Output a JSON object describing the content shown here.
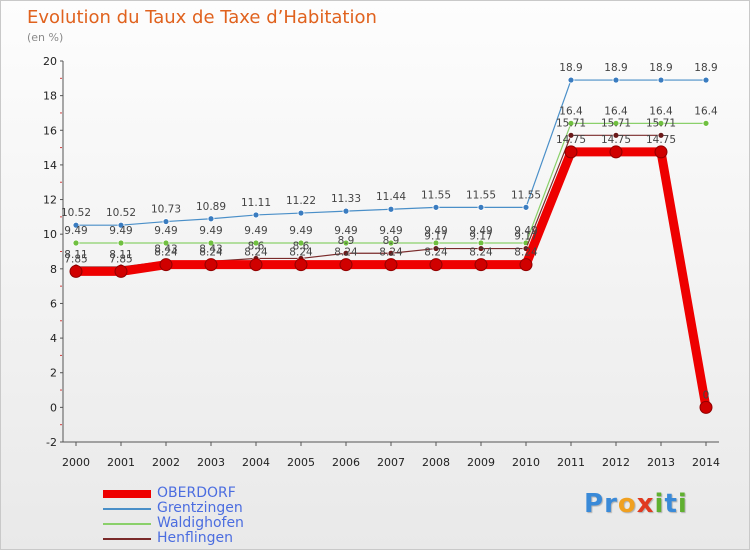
{
  "chart_data": {
    "type": "line",
    "title": "Evolution du Taux de Taxe d’Habitation",
    "unit": "(en %)",
    "xlabel": "",
    "ylabel": "",
    "ylim": [
      -2,
      20
    ],
    "yticks": [
      -2,
      0,
      2,
      4,
      6,
      8,
      10,
      12,
      14,
      16,
      18,
      20
    ],
    "categories": [
      "2000",
      "2001",
      "2002",
      "2003",
      "2004",
      "2005",
      "2006",
      "2007",
      "2008",
      "2009",
      "2010",
      "2011",
      "2012",
      "2013",
      "2014"
    ],
    "series": [
      {
        "name": "Grentzingen",
        "color": "#4a8fc8",
        "marker": "#3a7cc0",
        "values": [
          10.52,
          10.52,
          10.73,
          10.89,
          11.11,
          11.22,
          11.33,
          11.44,
          11.55,
          11.55,
          11.55,
          18.9,
          18.9,
          18.9,
          18.9
        ],
        "labels": [
          "10.52",
          "10.52",
          "10.73",
          "10.89",
          "11.11",
          "11.22",
          "11.33",
          "11.44",
          "11.55",
          "11.55",
          "11.55",
          "18.9",
          "18.9",
          "18.9",
          "18.9"
        ]
      },
      {
        "name": "Waldighofen",
        "color": "#8ad06a",
        "marker": "#70c040",
        "values": [
          9.49,
          9.49,
          9.49,
          9.49,
          9.49,
          9.49,
          9.49,
          9.49,
          9.49,
          9.49,
          9.49,
          16.4,
          16.4,
          16.4,
          16.4
        ],
        "labels": [
          "9.49",
          "9.49",
          "9.49",
          "9.49",
          "9.49",
          "9.49",
          "9.49",
          "9.49",
          "9.49",
          "9.49",
          "9.49",
          "16.4",
          "16.4",
          "16.4",
          "16.4"
        ]
      },
      {
        "name": "Henflingen",
        "color": "#7a2a2a",
        "marker": "#6a1a1a",
        "values": [
          8.11,
          8.11,
          8.43,
          8.43,
          8.6,
          8.6,
          8.9,
          8.9,
          9.17,
          9.17,
          9.17,
          15.71,
          15.71,
          15.71,
          null
        ],
        "labels": [
          "8.11",
          "8.11",
          "8.43",
          "8.43",
          "8.6",
          "8.6",
          "8.9",
          "8.9",
          "9.17",
          "9.17",
          "9.17",
          "15.71",
          "15.71",
          "15.71",
          ""
        ]
      },
      {
        "name": "OBERDORF",
        "color": "#ee0000",
        "marker": "#d00000",
        "values": [
          7.85,
          7.85,
          8.24,
          8.24,
          8.24,
          8.24,
          8.24,
          8.24,
          8.24,
          8.24,
          8.24,
          14.75,
          14.75,
          14.75,
          0
        ],
        "labels": [
          "7.85",
          "7.85",
          "8.24",
          "8.24",
          "8.24",
          "8.24",
          "8.24",
          "8.24",
          "8.24",
          "8.24",
          "8.24",
          "14.75",
          "14.75",
          "14.75",
          "0"
        ]
      }
    ],
    "legend": [
      {
        "name": "OBERDORF",
        "color": "#ee0000"
      },
      {
        "name": "Grentzingen",
        "color": "#4a8fc8"
      },
      {
        "name": "Waldighofen",
        "color": "#8ad06a"
      },
      {
        "name": "Henflingen",
        "color": "#7a2a2a"
      }
    ]
  },
  "logo": {
    "letters": [
      "P",
      "r",
      "o",
      "x",
      "i",
      "t",
      "i"
    ],
    "colors": [
      "#3a8ad8",
      "#3a8ad8",
      "#f0a020",
      "#e03a20",
      "#60b030",
      "#3a8ad8",
      "#60b030"
    ]
  }
}
